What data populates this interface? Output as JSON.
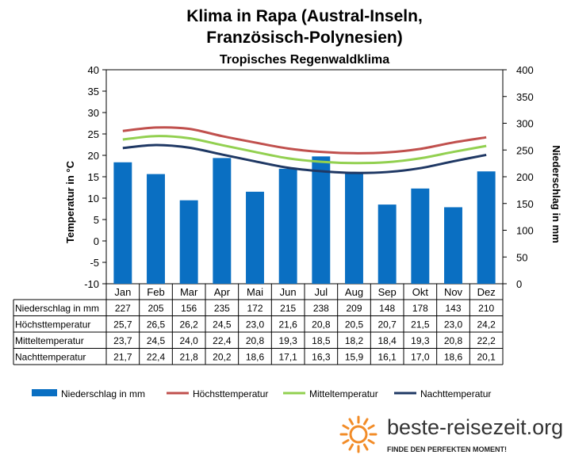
{
  "chart_data": {
    "type": "bar",
    "title_line1": "Klima in Rapa (Austral-Inseln,",
    "title_line2": "Französisch-Polynesien)",
    "subtitle": "Tropisches Regenwaldklima",
    "ylabel_left": "Temperatur in °C",
    "ylabel_right": "Niederschlag in mm",
    "ylim_left": [
      -10,
      40
    ],
    "ylim_right": [
      0,
      400
    ],
    "yticks_left": [
      "-10",
      "-5",
      "0",
      "5",
      "10",
      "15",
      "20",
      "25",
      "30",
      "35",
      "40"
    ],
    "yticks_right": [
      "0",
      "50",
      "100",
      "150",
      "200",
      "250",
      "300",
      "350",
      "400"
    ],
    "grid": false,
    "legend_position": "bottom",
    "categories": [
      "Jan",
      "Feb",
      "Mar",
      "Apr",
      "Mai",
      "Jun",
      "Jul",
      "Aug",
      "Sep",
      "Okt",
      "Nov",
      "Dez"
    ],
    "series": [
      {
        "name": "Niederschlag in mm",
        "type": "bar",
        "axis": "right",
        "color": "#0a6fc2",
        "values": [
          227,
          205,
          156,
          235,
          172,
          215,
          238,
          209,
          148,
          178,
          143,
          210
        ],
        "labels": [
          "227",
          "205",
          "156",
          "235",
          "172",
          "215",
          "238",
          "209",
          "148",
          "178",
          "143",
          "210"
        ]
      },
      {
        "name": "Höchsttemperatur",
        "type": "line",
        "axis": "left",
        "color": "#c0504d",
        "values": [
          25.7,
          26.5,
          26.2,
          24.5,
          23.0,
          21.6,
          20.8,
          20.5,
          20.7,
          21.5,
          23.0,
          24.2
        ],
        "labels": [
          "25,7",
          "26,5",
          "26,2",
          "24,5",
          "23,0",
          "21,6",
          "20,8",
          "20,5",
          "20,7",
          "21,5",
          "23,0",
          "24,2"
        ]
      },
      {
        "name": "Mitteltemperatur",
        "type": "line",
        "axis": "left",
        "color": "#92d050",
        "values": [
          23.7,
          24.5,
          24.0,
          22.4,
          20.8,
          19.3,
          18.5,
          18.2,
          18.4,
          19.3,
          20.8,
          22.2
        ],
        "labels": [
          "23,7",
          "24,5",
          "24,0",
          "22,4",
          "20,8",
          "19,3",
          "18,5",
          "18,2",
          "18,4",
          "19,3",
          "20,8",
          "22,2"
        ]
      },
      {
        "name": "Nachttemperatur",
        "type": "line",
        "axis": "left",
        "color": "#1f3864",
        "values": [
          21.7,
          22.4,
          21.8,
          20.2,
          18.6,
          17.1,
          16.3,
          15.9,
          16.1,
          17.0,
          18.6,
          20.1
        ],
        "labels": [
          "21,7",
          "22,4",
          "21,8",
          "20,2",
          "18,6",
          "17,1",
          "16,3",
          "15,9",
          "16,1",
          "17,0",
          "18,6",
          "20,1"
        ]
      }
    ],
    "table_rows": [
      "Niederschlag in mm",
      "Höchsttemperatur",
      "Mitteltemperatur",
      "Nachttemperatur"
    ]
  },
  "branding": {
    "site": "beste-reisezeit.org",
    "tagline": "FINDE DEN PERFEKTEN MOMENT!",
    "logo": "sun-logo",
    "accent": "#f28c28"
  }
}
